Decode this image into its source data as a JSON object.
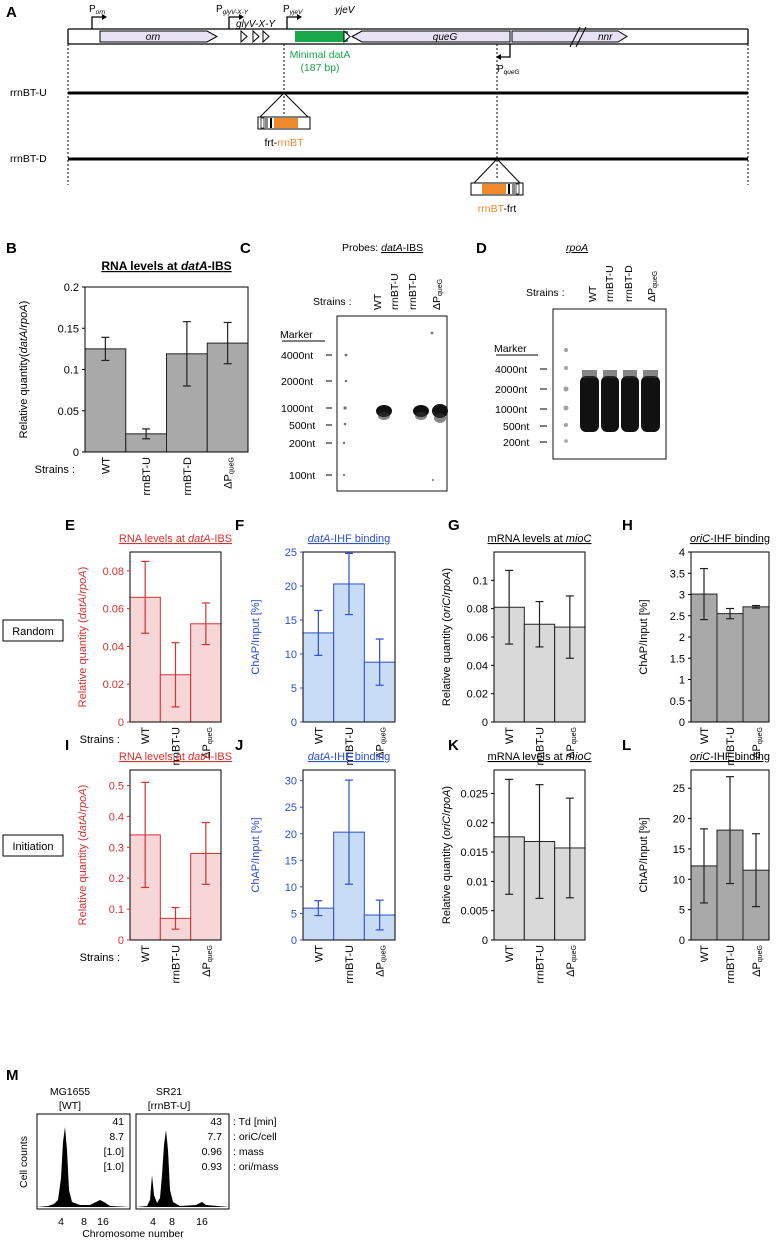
{
  "panel_letters": [
    "A",
    "B",
    "C",
    "D",
    "E",
    "F",
    "G",
    "H",
    "I",
    "J",
    "K",
    "L",
    "M"
  ],
  "panelA": {
    "promoters": {
      "orn": "P",
      "orn_sub": "orn",
      "glyV": "P",
      "glyV_sub": "glyV-X-Y",
      "yjeV": "P",
      "yjeV_sub": "yjeV",
      "queG": "P",
      "queG_sub": "queG"
    },
    "genes": {
      "orn": "orn",
      "glyVXY": "glyV-X-Y",
      "queG": "queG",
      "nnr": "nnr",
      "yjeV": "yjeV"
    },
    "minimal_datA_line1": "Minimal datA",
    "minimal_datA_line2": "(187 bp)",
    "strain_u": "rrnBT-U",
    "strain_d": "rrnBT-D",
    "insert_u_prefix": "frt-",
    "insert_u_main": "rrnBT",
    "insert_d_main": "rrnBT",
    "insert_d_suffix": "-frt"
  },
  "blots": {
    "strains_label": "Strains :",
    "marker_label": "Marker",
    "c_title_prefix": "Probes: ",
    "c_title_main": "datA",
    "c_title_suffix": "-IBS",
    "c_lanes": [
      "WT",
      "rrnBT-U",
      "rrnBT-D",
      "ΔP"
    ],
    "c_markers": [
      "4000nt",
      "2000nt",
      "1000nt",
      "500nt",
      "200nt",
      "100nt"
    ],
    "d_title": "rpoA",
    "d_lanes": [
      "WT",
      "rrnBT-U",
      "rrnBT-D",
      "ΔP"
    ],
    "d_markers": [
      "4000nt",
      "2000nt",
      "1000nt",
      "500nt",
      "200nt"
    ],
    "lane_sub": "queG"
  },
  "row_labels": {
    "random": "Random",
    "initiation": "Initiation"
  },
  "strains_label": "Strains :",
  "chart_data": [
    {
      "id": "B",
      "type": "bar",
      "title": "RNA levels at datA-IBS",
      "ylabel": "Relative quantity(datA/rpoA)",
      "categories": [
        "WT",
        "rrnBT-U",
        "rrnBT-D",
        "ΔPqueG"
      ],
      "values": [
        0.125,
        0.022,
        0.119,
        0.132
      ],
      "errors": [
        0.014,
        0.006,
        0.039,
        0.025
      ],
      "ylim": [
        0,
        0.2
      ],
      "yticks": [
        "0",
        "0.05",
        "0.1",
        "0.15",
        "0.2"
      ],
      "color": "#a9a9a9",
      "edge": "#222222"
    },
    {
      "id": "E",
      "type": "bar",
      "title": "RNA levels at datA-IBS",
      "ylabel": "Relative quantity (datA/rpoA)",
      "categories": [
        "WT",
        "rrnBT-U",
        "ΔPqueG"
      ],
      "values": [
        0.066,
        0.025,
        0.052
      ],
      "errors": [
        0.019,
        0.017,
        0.011
      ],
      "ylim": [
        0,
        0.09
      ],
      "yticks": [
        "0",
        "0.02",
        "0.04",
        "0.06",
        "0.08"
      ],
      "color": "#f6d6d6",
      "edge": "#d93030"
    },
    {
      "id": "F",
      "type": "bar",
      "title": "datA-IHF binding",
      "ylabel": "ChAP/Input [%]",
      "categories": [
        "WT",
        "rrnBT-U",
        "ΔPqueG"
      ],
      "values": [
        13.1,
        20.3,
        8.8
      ],
      "errors": [
        3.3,
        4.5,
        3.4
      ],
      "ylim": [
        0,
        25
      ],
      "yticks": [
        "0",
        "5",
        "10",
        "15",
        "20",
        "25"
      ],
      "color": "#c9dcf6",
      "edge": "#2a4fd0"
    },
    {
      "id": "G",
      "type": "bar",
      "title": "mRNA levels at mioC",
      "ylabel": "Relative quantity (oriC/rpoA)",
      "categories": [
        "WT",
        "rrnBT-U",
        "ΔPqueG"
      ],
      "values": [
        0.081,
        0.069,
        0.067
      ],
      "errors": [
        0.026,
        0.016,
        0.022
      ],
      "ylim": [
        0,
        0.12
      ],
      "yticks": [
        "0",
        "0.02",
        "0.04",
        "0.06",
        "0.08",
        "0.1"
      ],
      "color": "#d9d9d9",
      "edge": "#222222"
    },
    {
      "id": "H",
      "type": "bar",
      "title": "oriC-IHF binding",
      "ylabel": "ChAP/Input [%]",
      "categories": [
        "WT",
        "rrnBT-U",
        "ΔPqueG"
      ],
      "values": [
        3.01,
        2.55,
        2.71
      ],
      "errors": [
        0.6,
        0.12,
        0.03
      ],
      "ylim": [
        0,
        4
      ],
      "yticks": [
        "0",
        "0.5",
        "1",
        "1.5",
        "2",
        "2.5",
        "3",
        "3.5",
        "4"
      ],
      "color": "#a9a9a9",
      "edge": "#222222"
    },
    {
      "id": "I",
      "type": "bar",
      "title": "RNA levels at datA-IBS",
      "ylabel": "Relative quantity (datA/rpoA)",
      "categories": [
        "WT",
        "rrnBT-U",
        "ΔPqueG"
      ],
      "values": [
        0.34,
        0.07,
        0.28
      ],
      "errors": [
        0.17,
        0.035,
        0.1
      ],
      "ylim": [
        0,
        0.55
      ],
      "yticks": [
        "0",
        "0.1",
        "0.2",
        "0.3",
        "0.4",
        "0.5"
      ],
      "color": "#f6d6d6",
      "edge": "#d93030"
    },
    {
      "id": "J",
      "type": "bar",
      "title": "datA-IHF binding",
      "ylabel": "ChAP/Input [%]",
      "categories": [
        "WT",
        "rrnBT-U",
        "ΔPqueG"
      ],
      "values": [
        6.0,
        20.3,
        4.7
      ],
      "errors": [
        1.4,
        9.8,
        2.8
      ],
      "ylim": [
        0,
        32
      ],
      "yticks": [
        "0",
        "5",
        "10",
        "15",
        "20",
        "25",
        "30"
      ],
      "color": "#c9dcf6",
      "edge": "#2a4fd0"
    },
    {
      "id": "K",
      "type": "bar",
      "title": "mRNA levels at mioC",
      "ylabel": "Relative quantity (oriC/rpoA)",
      "categories": [
        "WT",
        "rrnBT-U",
        "ΔPqueG"
      ],
      "values": [
        0.0176,
        0.0168,
        0.0157
      ],
      "errors": [
        0.0098,
        0.0097,
        0.0085
      ],
      "ylim": [
        0,
        0.029
      ],
      "yticks": [
        "0",
        "0.005",
        "0.01",
        "0.015",
        "0.02",
        "0.025"
      ],
      "color": "#d9d9d9",
      "edge": "#222222"
    },
    {
      "id": "L",
      "type": "bar",
      "title": "oriC-IHF binding",
      "ylabel": "ChAP/Input [%]",
      "categories": [
        "WT",
        "rrnBT-U",
        "ΔPqueG"
      ],
      "values": [
        12.2,
        18.1,
        11.5
      ],
      "errors": [
        6.1,
        8.8,
        6.0
      ],
      "ylim": [
        0,
        28
      ],
      "yticks": [
        "0",
        "5",
        "10",
        "15",
        "20",
        "25"
      ],
      "color": "#a9a9a9",
      "edge": "#222222"
    }
  ],
  "panelM": {
    "strain1_name": "MG1655",
    "strain1_tag": "[WT]",
    "strain2_name": "SR21",
    "strain2_tag": "[rrnBT-U]",
    "ylabel": "Cell counts",
    "xlabel": "Chromosome number",
    "xticks": [
      "4",
      "8",
      "16"
    ],
    "wt_values": [
      "41",
      "8.7",
      "[1.0]",
      "[1.0]"
    ],
    "srt_values": [
      "43",
      "7.7",
      "0.96",
      "0.93"
    ],
    "metric_labels": [
      ": Td [min]",
      ": oriC/cell",
      ": mass",
      ": ori/mass"
    ]
  },
  "colors": {
    "green": "#1aa64a",
    "orange": "#f08a2c",
    "gene_fill": "#e8e2f4",
    "red": "#d93030",
    "blue": "#2a4fd0"
  }
}
